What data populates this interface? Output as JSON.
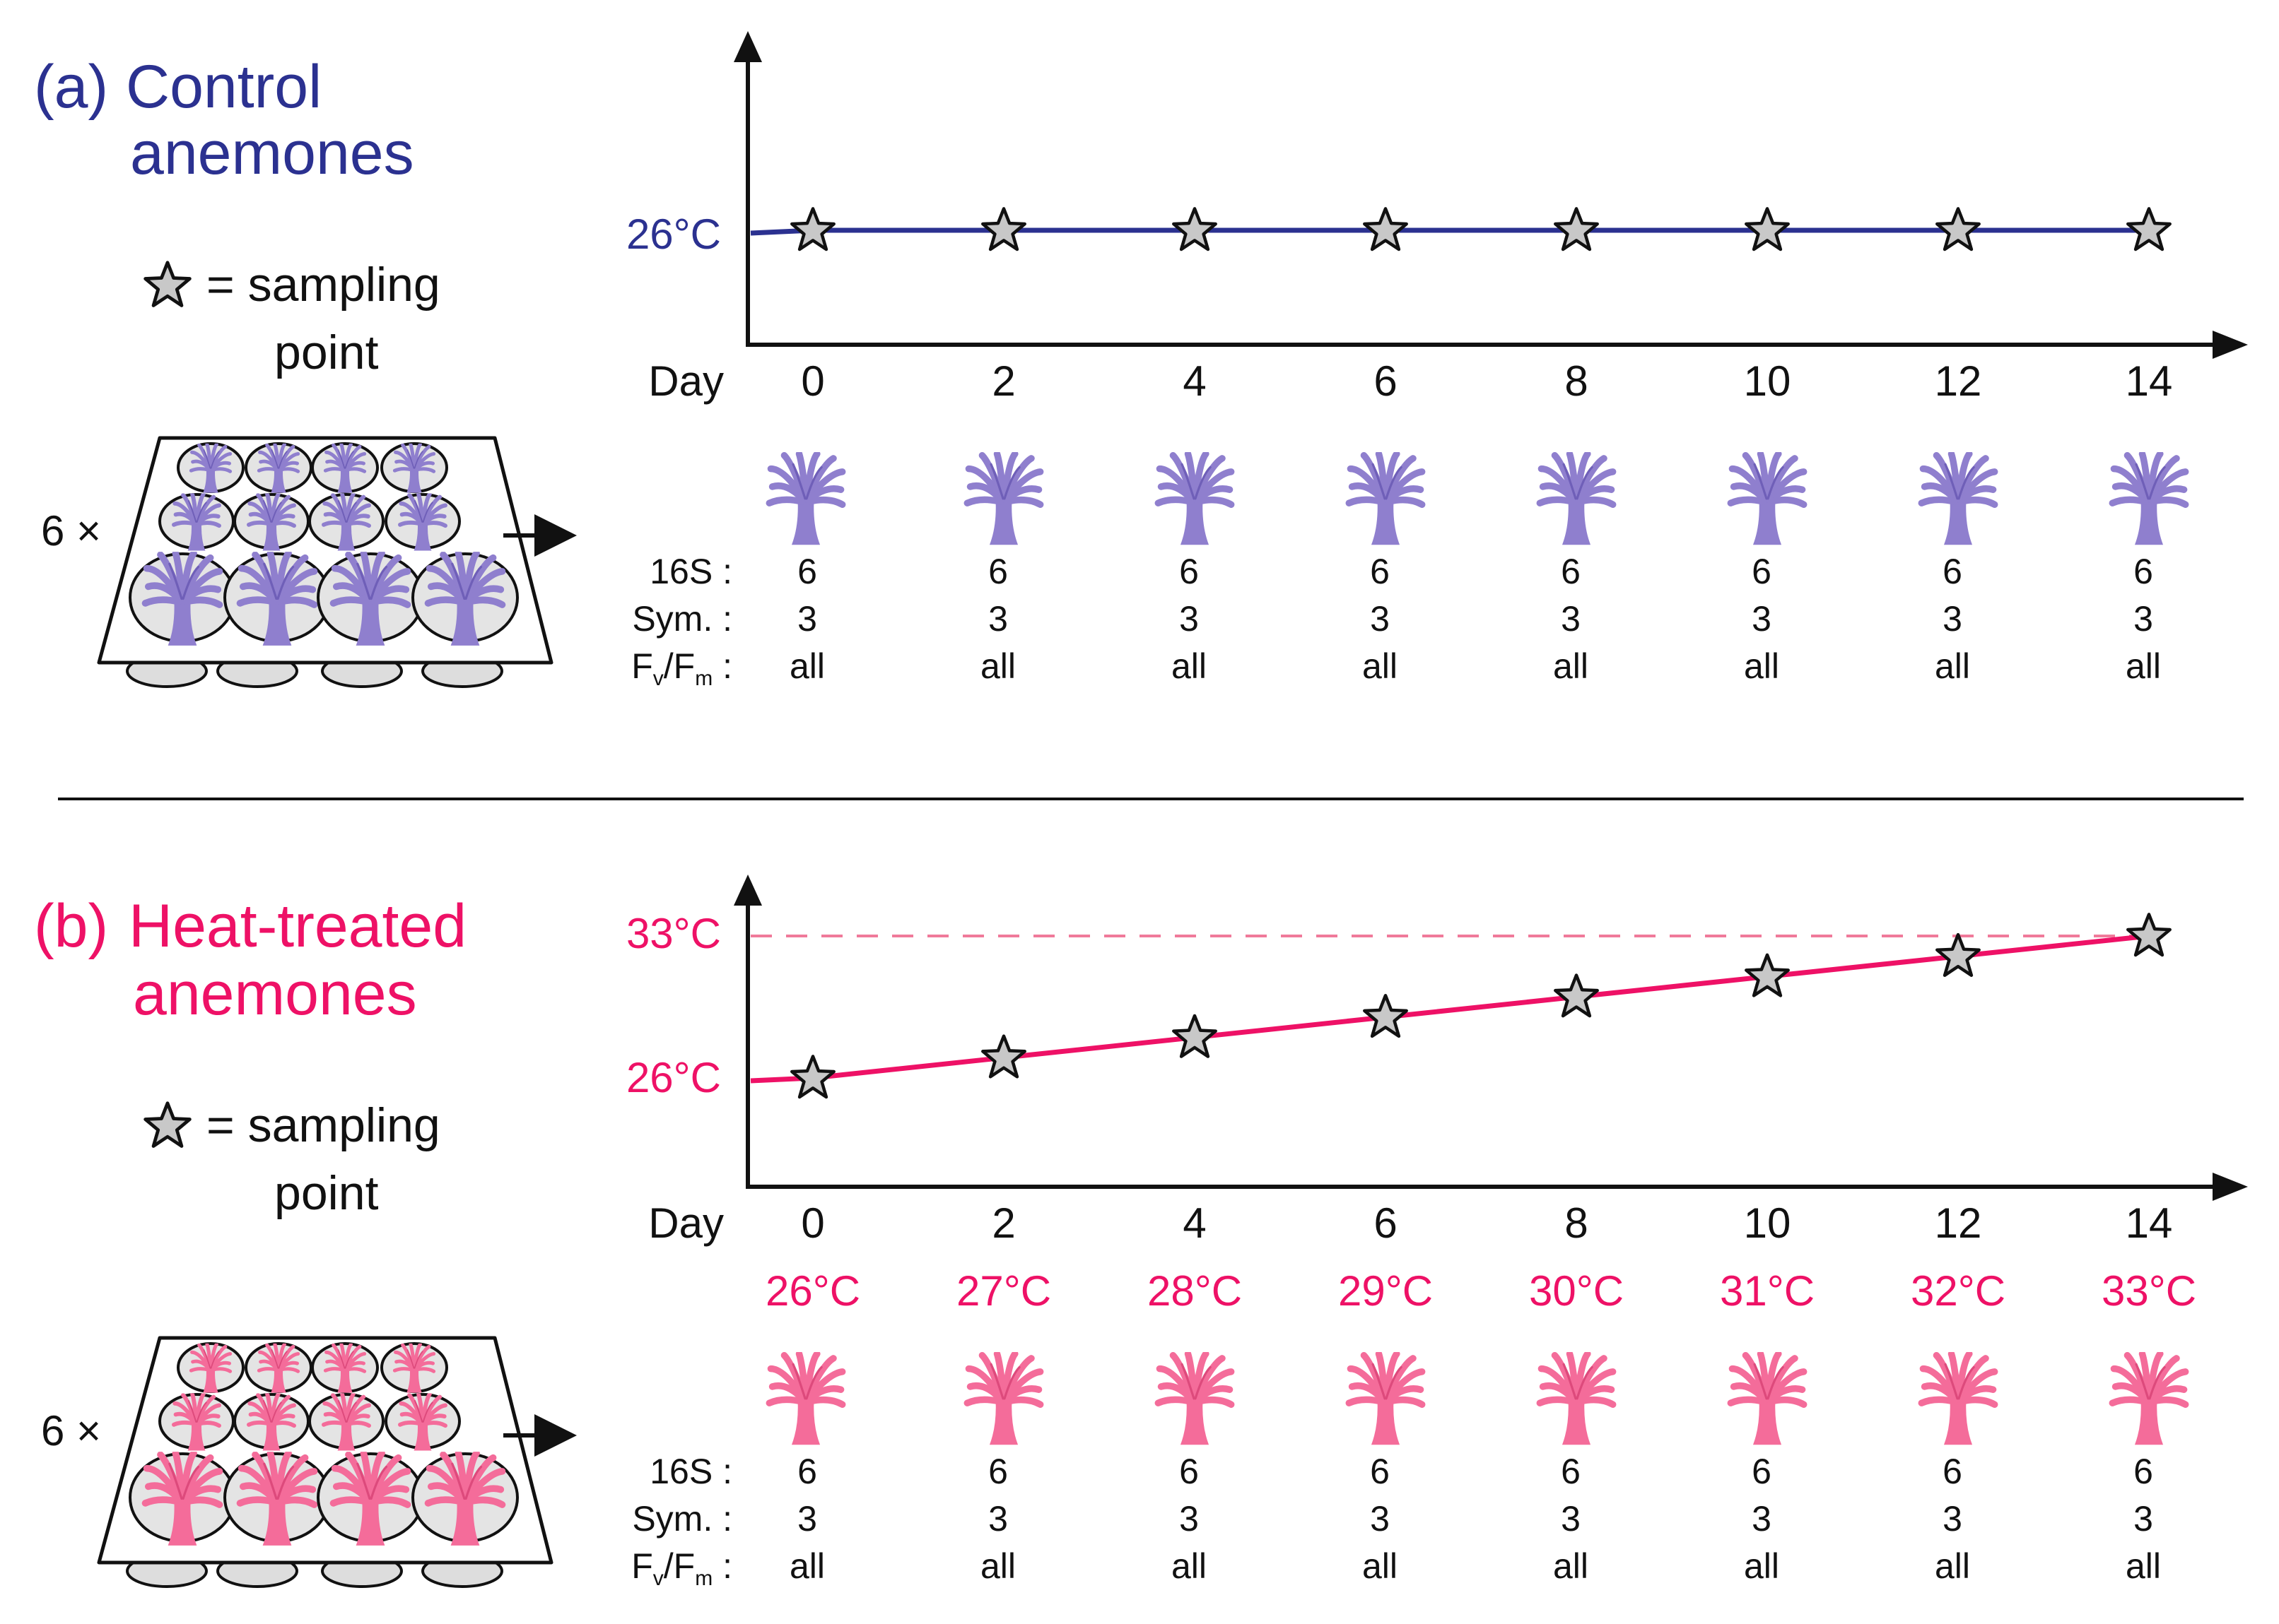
{
  "colors": {
    "control": "#2b3190",
    "heat": "#ee1166",
    "heat_dashed": "#f07a9a",
    "star_fill": "#c8c8c8",
    "anemone_control": "#8f7fce",
    "anemone_control_dark": "#6f5fb8",
    "anemone_heat": "#f46c9a",
    "anemone_heat_dark": "#dd4a7c",
    "text": "#111111"
  },
  "days": [
    "0",
    "2",
    "4",
    "6",
    "8",
    "10",
    "12",
    "14"
  ],
  "day_label": "Day",
  "legend": {
    "equals": "= sampling",
    "line2": "point"
  },
  "rows": {
    "labels": [
      "16S :",
      "Sym. :",
      "F"
    ],
    "fvfm": {
      "f": "F",
      "v": "v",
      "slash": "/F",
      "m": "m",
      "colon": " :"
    },
    "values_16s": [
      "6",
      "6",
      "6",
      "6",
      "6",
      "6",
      "6",
      "6"
    ],
    "values_sym": [
      "3",
      "3",
      "3",
      "3",
      "3",
      "3",
      "3",
      "3"
    ],
    "values_fvfm": [
      "all",
      "all",
      "all",
      "all",
      "all",
      "all",
      "all",
      "all"
    ]
  },
  "plate_multiplier": "6 ×",
  "panels": [
    {
      "id": "a",
      "prefix": "(a)",
      "title_line1": "Control",
      "title_line2": "anemones",
      "y_labels": [
        "26°C"
      ],
      "temperatures_c": [
        26,
        26,
        26,
        26,
        26,
        26,
        26,
        26
      ],
      "day_temps": []
    },
    {
      "id": "b",
      "prefix": "(b)",
      "title_line1": "Heat-treated",
      "title_line2": "anemones",
      "y_labels": [
        "33°C",
        "26°C"
      ],
      "temperatures_c": [
        26,
        27,
        28,
        29,
        30,
        31,
        32,
        33
      ],
      "day_temps": [
        "26°C",
        "27°C",
        "28°C",
        "29°C",
        "30°C",
        "31°C",
        "32°C",
        "33°C"
      ]
    }
  ]
}
